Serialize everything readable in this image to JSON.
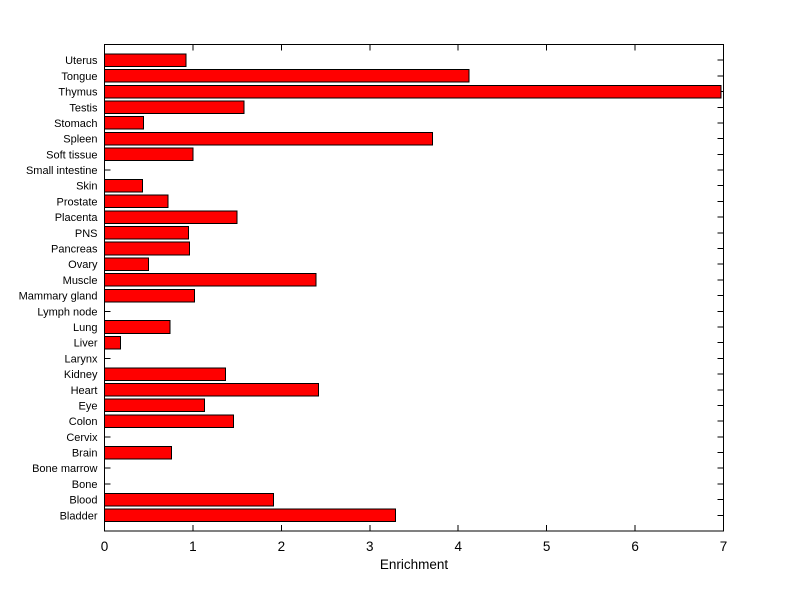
{
  "chart_data": {
    "type": "bar",
    "orientation": "horizontal",
    "title": "",
    "xlabel": "Enrichment",
    "ylabel": "",
    "xlim": [
      0,
      7
    ],
    "xticks": [
      0,
      1,
      2,
      3,
      4,
      5,
      6,
      7
    ],
    "grid": false,
    "legend": null,
    "bar_color": "#ff0000",
    "bar_edge_color": "#000000",
    "axis_color": "#000000",
    "background_color": "#ffffff",
    "categories": [
      "Uterus",
      "Tongue",
      "Thymus",
      "Testis",
      "Stomach",
      "Spleen",
      "Soft tissue",
      "Small intestine",
      "Skin",
      "Prostate",
      "Placenta",
      "PNS",
      "Pancreas",
      "Ovary",
      "Muscle",
      "Mammary gland",
      "Lymph node",
      "Lung",
      "Liver",
      "Larynx",
      "Kidney",
      "Heart",
      "Eye",
      "Colon",
      "Cervix",
      "Brain",
      "Bone marrow",
      "Bone",
      "Blood",
      "Bladder"
    ],
    "values": [
      0.92,
      4.12,
      6.97,
      1.58,
      0.44,
      3.71,
      1.0,
      0,
      0.43,
      0.72,
      1.5,
      0.95,
      0.96,
      0.5,
      2.39,
      1.02,
      0,
      0.74,
      0.18,
      0,
      1.37,
      2.42,
      1.13,
      1.46,
      0,
      0.76,
      0,
      0,
      1.91,
      3.29
    ]
  }
}
